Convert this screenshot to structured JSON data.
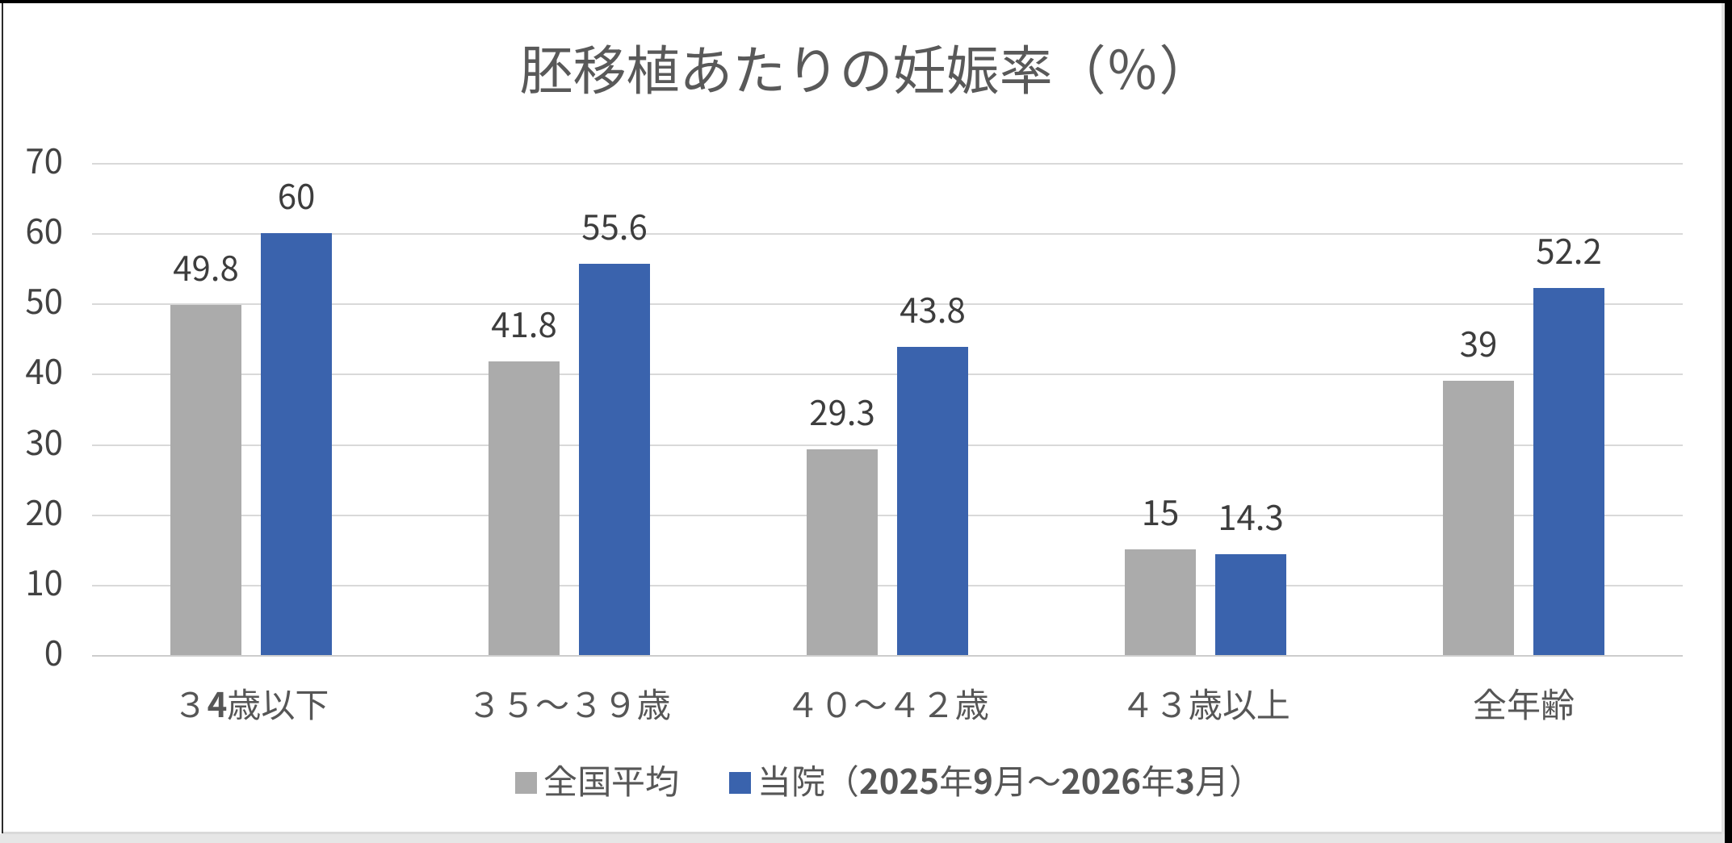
{
  "chart_data": {
    "type": "bar",
    "title": "胚移植あたりの妊娠率（％）",
    "categories": [
      "３4歳以下",
      "３５～３９歳",
      "４０～４２歳",
      "４３歳以上",
      "全年齢"
    ],
    "series": [
      {
        "name": "全国平均",
        "color": "#ababab",
        "values": [
          49.8,
          41.8,
          29.3,
          15,
          39
        ]
      },
      {
        "name": "当院（2025年9月～2026年3月）",
        "color": "#3a63ad",
        "values": [
          60,
          55.6,
          43.8,
          14.3,
          52.2
        ]
      }
    ],
    "ylim": [
      0,
      70
    ],
    "ytick_step": 10,
    "yticks": [
      "0",
      "10",
      "20",
      "30",
      "40",
      "50",
      "60",
      "70"
    ],
    "xlabel": "",
    "ylabel": "",
    "grid": true,
    "legend_position": "bottom",
    "value_labels_shown": true
  },
  "colors": {
    "series1": "#ababab",
    "series2": "#3a63ad",
    "gridline": "#d9d9d9",
    "axis_line": "#cdcdcd",
    "title_text": "#595959",
    "tick_text": "#424242",
    "value_label_text": "#3d3d3d",
    "category_text": "#565656",
    "legend_text": "#565656",
    "frame_border": "#000000",
    "page_strip": "#e6e6e6",
    "background": "#ffffff"
  }
}
